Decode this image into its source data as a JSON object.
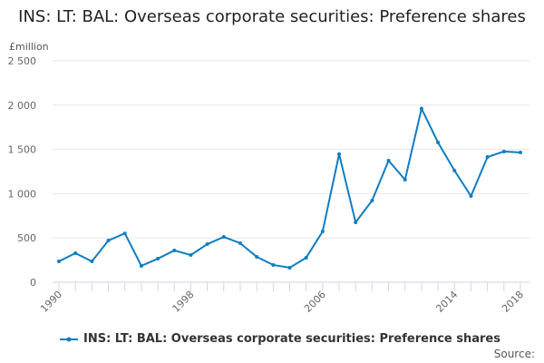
{
  "chart_data": {
    "type": "line",
    "title": "INS: LT: BAL: Overseas corporate securities: Preference shares",
    "ylabel": "£million",
    "ylim": [
      0,
      2500
    ],
    "yticks": [
      0,
      500,
      1000,
      1500,
      2000,
      2500
    ],
    "ytick_labels": [
      "0",
      "500",
      "1 000",
      "1 500",
      "2 000",
      "2 500"
    ],
    "xtick_labels": [
      "1990",
      "1998",
      "2006",
      "2014",
      "2018"
    ],
    "grid": true,
    "legend_placement": "bottom",
    "color": "#0F7DC2",
    "x": [
      1990,
      1991,
      1992,
      1993,
      1994,
      1995,
      1996,
      1997,
      1998,
      1999,
      2000,
      2001,
      2002,
      2003,
      2004,
      2005,
      2006,
      2007,
      2008,
      2009,
      2010,
      2011,
      2012,
      2013,
      2014,
      2015,
      2016,
      2017,
      2018
    ],
    "series": [
      {
        "name": "INS: LT: BAL: Overseas corporate securities: Preference shares",
        "values": [
          236,
          328,
          236,
          471,
          551,
          185,
          266,
          359,
          307,
          430,
          512,
          441,
          287,
          195,
          164,
          277,
          574,
          1447,
          676,
          922,
          1373,
          1158,
          1960,
          1578,
          1260,
          973,
          1414,
          1476,
          1465
        ]
      }
    ]
  },
  "footer": {
    "source": "Source:"
  }
}
